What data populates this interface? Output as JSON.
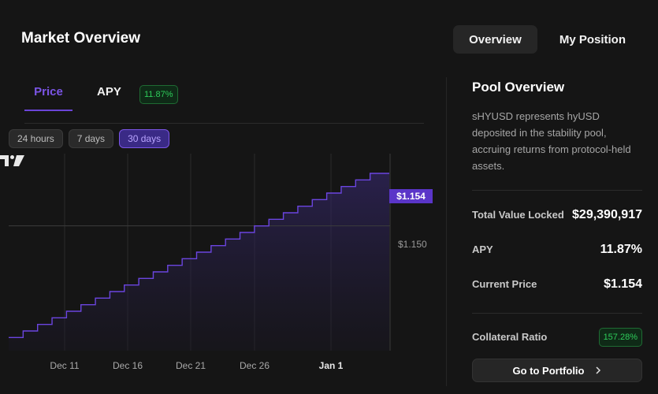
{
  "header": {
    "title": "Market Overview"
  },
  "top_tabs": [
    {
      "label": "Overview"
    },
    {
      "label": "My Position"
    }
  ],
  "chart_tabs": {
    "price": "Price",
    "apy": "APY",
    "apy_badge": "11.87%"
  },
  "ranges": [
    {
      "label": "24 hours"
    },
    {
      "label": "7 days"
    },
    {
      "label": "30 days"
    }
  ],
  "chart_data": {
    "type": "line",
    "title": "Price",
    "current_label": "$1.154",
    "reference_label": "$1.150",
    "reference_value": 1.15,
    "x_ticks": [
      "Dec 11",
      "Dec 16",
      "Dec 21",
      "Dec 26",
      "Jan 1"
    ],
    "values": [
      1.1415,
      1.142,
      1.1425,
      1.143,
      1.1435,
      1.144,
      1.1445,
      1.145,
      1.1455,
      1.146,
      1.1465,
      1.147,
      1.1475,
      1.148,
      1.1485,
      1.149,
      1.1495,
      1.15,
      1.1505,
      1.151,
      1.1515,
      1.152,
      1.1525,
      1.153,
      1.1535,
      1.154
    ],
    "ylim": [
      1.1405,
      1.1555
    ]
  },
  "pool": {
    "title": "Pool Overview",
    "description": "sHYUSD represents hyUSD deposited in the stability pool, accruing returns from protocol-held assets.",
    "stats": {
      "tvl_label": "Total Value Locked",
      "tvl_value": "$29,390,917",
      "apy_label": "APY",
      "apy_value": "11.87%",
      "price_label": "Current Price",
      "price_value": "$1.154",
      "cr_label": "Collateral Ratio",
      "cr_value": "157.28%"
    },
    "cta": "Go to Portfolio"
  },
  "colors": {
    "accent": "#6b45d8",
    "green": "#2ecc5a",
    "bg": "#151515"
  }
}
